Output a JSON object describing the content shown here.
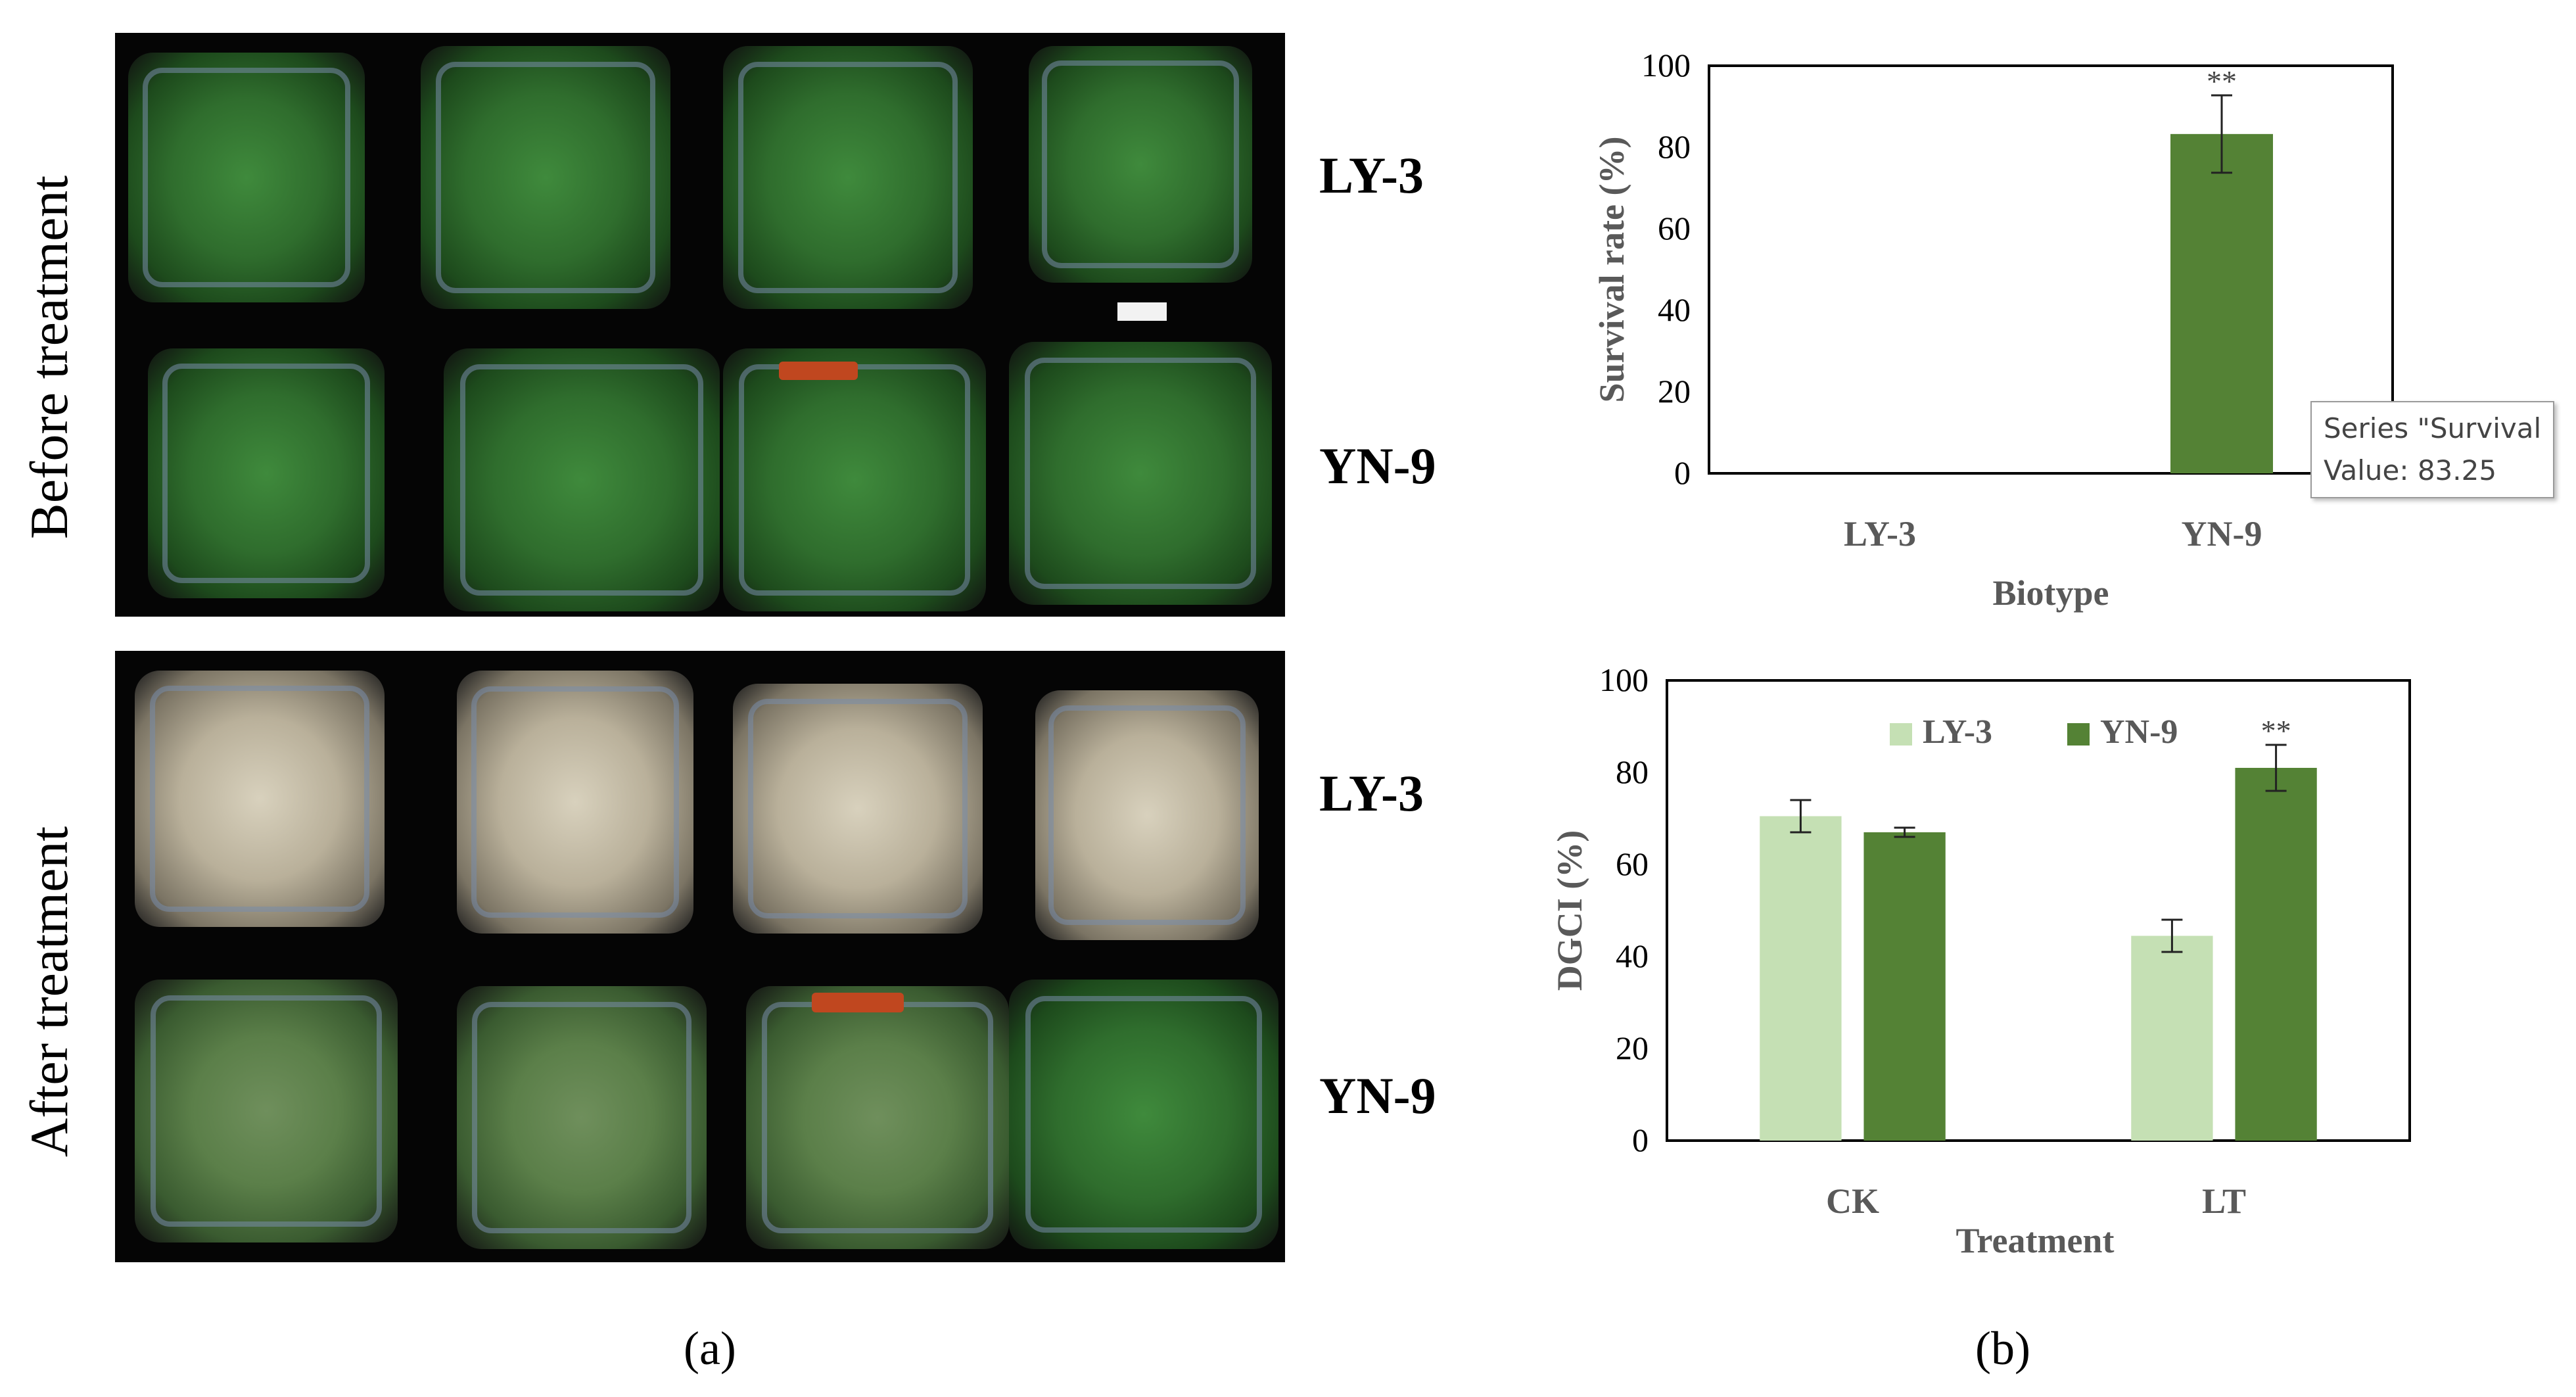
{
  "figure": {
    "panel_a": {
      "label": "(a)",
      "sections": [
        {
          "label": "Before treatment",
          "rows": [
            "LY-3",
            "YN-9"
          ]
        },
        {
          "label": "After treatment",
          "rows": [
            "LY-3",
            "YN-9"
          ]
        }
      ]
    },
    "panel_b": {
      "label": "(b)"
    },
    "colors": {
      "ly3": "#c5e0b4",
      "yn9": "#548235",
      "photo_bg": "#050505"
    }
  },
  "tooltip": {
    "line1": "Series \"Survival",
    "line2": "Value: 83.25"
  },
  "chart_data": [
    {
      "type": "bar",
      "xlabel": "Biotype",
      "ylabel": "Survival rate (%)",
      "ylim": [
        0,
        100
      ],
      "yticks": [
        0,
        20,
        40,
        60,
        80,
        100
      ],
      "categories": [
        "LY-3",
        "YN-9"
      ],
      "series": [
        {
          "values": [
            0,
            83.25
          ],
          "errors": [
            0,
            9.5
          ],
          "color": "#548235"
        }
      ],
      "annotations": [
        {
          "category": "YN-9",
          "text": "**"
        }
      ],
      "grid": false
    },
    {
      "type": "bar",
      "xlabel": "Treatment",
      "ylabel": "DGCI (%)",
      "ylim": [
        0,
        100
      ],
      "yticks": [
        0,
        20,
        40,
        60,
        80,
        100
      ],
      "categories": [
        "CK",
        "LT"
      ],
      "series": [
        {
          "name": "LY-3",
          "values": [
            70.5,
            44.5
          ],
          "errors": [
            3.5,
            3.5
          ],
          "color": "#c5e0b4"
        },
        {
          "name": "YN-9",
          "values": [
            67,
            81
          ],
          "errors": [
            1,
            5
          ],
          "color": "#548235"
        }
      ],
      "annotations": [
        {
          "category": "LT",
          "series": "YN-9",
          "text": "**"
        }
      ],
      "legend": "top",
      "grid": false
    }
  ]
}
